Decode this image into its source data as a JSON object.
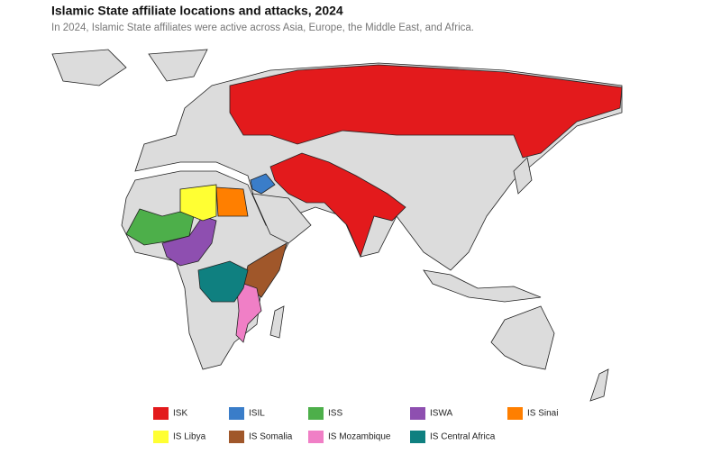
{
  "header": {
    "title": "Islamic State affiliate locations and attacks, 2024",
    "subtitle": "In 2024, Islamic State affiliates were active across Asia, Europe, the Middle East, and Africa."
  },
  "legend": {
    "items": [
      {
        "name": "ISK",
        "color": "#e31a1c"
      },
      {
        "name": "ISIL",
        "color": "#3a7dc9"
      },
      {
        "name": "ISS",
        "color": "#4daf4a"
      },
      {
        "name": "ISWA",
        "color": "#8e4fb0"
      },
      {
        "name": "IS Sinai",
        "color": "#ff7f00"
      },
      {
        "name": "IS Libya",
        "color": "#ffff33"
      },
      {
        "name": "IS Somalia",
        "color": "#a0572a"
      },
      {
        "name": "IS Mozambique",
        "color": "#f07fc6"
      },
      {
        "name": "IS Central Africa",
        "color": "#0f8080"
      }
    ]
  }
}
